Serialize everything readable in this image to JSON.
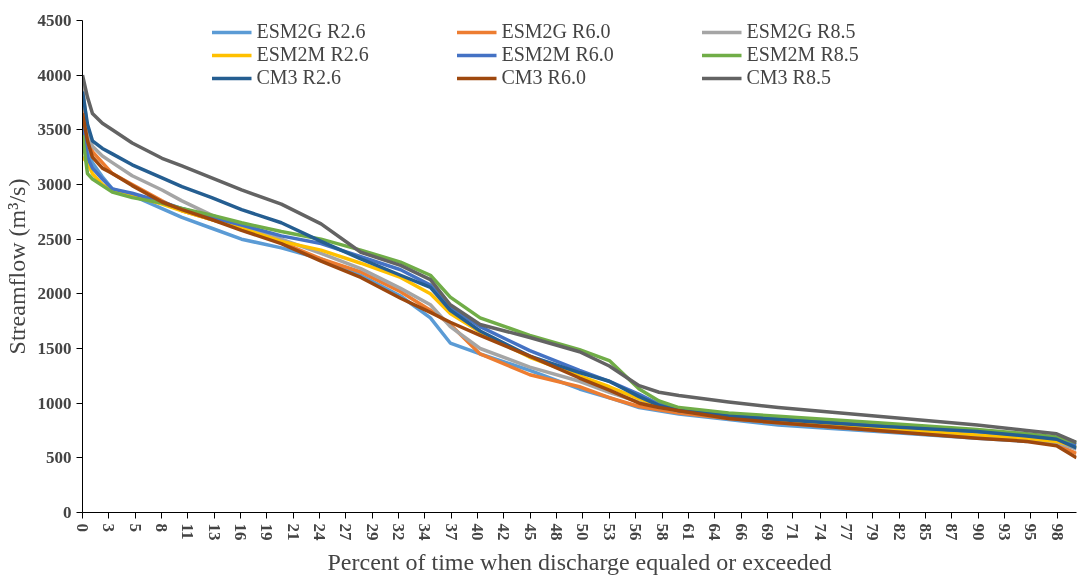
{
  "chart_data": {
    "type": "line",
    "xlabel": "Percent of time when discharge equaled or exceeded",
    "ylabel": "Streamflow (m³/s)",
    "x": [
      0,
      0.5,
      1,
      2,
      3,
      5,
      8,
      10,
      13,
      16,
      20,
      24,
      28,
      32,
      35,
      37,
      40,
      45,
      50,
      53,
      56,
      58,
      60,
      65,
      70,
      80,
      90,
      95,
      98,
      100
    ],
    "xlim": [
      0,
      100
    ],
    "xticks": [
      0,
      {
        "value": 2.65,
        "label": "3"
      },
      {
        "value": 5.3,
        "label": "5"
      },
      {
        "value": 7.95,
        "label": "8"
      },
      {
        "value": 10.6,
        "label": "11"
      },
      {
        "value": 13.25,
        "label": "13"
      },
      {
        "value": 15.9,
        "label": "16"
      },
      {
        "value": 18.55,
        "label": "19"
      },
      {
        "value": 21.2,
        "label": "21"
      },
      {
        "value": 23.85,
        "label": "24"
      },
      {
        "value": 26.5,
        "label": "27"
      },
      {
        "value": 29.15,
        "label": "29"
      },
      {
        "value": 31.8,
        "label": "32"
      },
      {
        "value": 34.45,
        "label": "34"
      },
      {
        "value": 37.1,
        "label": "37"
      },
      {
        "value": 39.75,
        "label": "40"
      },
      {
        "value": 42.4,
        "label": "42"
      },
      {
        "value": 45.05,
        "label": "45"
      },
      {
        "value": 47.7,
        "label": "48"
      },
      {
        "value": 50.35,
        "label": "50"
      },
      {
        "value": 53,
        "label": "53"
      },
      {
        "value": 55.65,
        "label": "56"
      },
      {
        "value": 58.3,
        "label": "58"
      },
      {
        "value": 60.95,
        "label": "61"
      },
      {
        "value": 63.6,
        "label": "64"
      },
      {
        "value": 66.25,
        "label": "66"
      },
      {
        "value": 68.9,
        "label": "69"
      },
      {
        "value": 71.4,
        "label": "71"
      },
      {
        "value": 74.2,
        "label": "74"
      },
      {
        "value": 76.85,
        "label": "77"
      },
      {
        "value": 79.5,
        "label": "79"
      },
      {
        "value": 82.15,
        "label": "82"
      },
      {
        "value": 84.8,
        "label": "85"
      },
      {
        "value": 87.45,
        "label": "87"
      },
      {
        "value": 90.1,
        "label": "90"
      },
      {
        "value": 92.75,
        "label": "93"
      },
      {
        "value": 95.4,
        "label": "95"
      },
      {
        "value": 98.05,
        "label": "98"
      }
    ],
    "ylim": [
      0,
      4500
    ],
    "yticks": [
      0,
      500,
      1000,
      1500,
      2000,
      2500,
      3000,
      3500,
      4000,
      4500
    ],
    "grid": false,
    "legend": "top",
    "marker": "none",
    "line_style": "solid",
    "series": [
      {
        "name": "ESM2G R2.6",
        "color": "#5b9bd5",
        "values": [
          3500,
          3300,
          3200,
          3070,
          2960,
          2900,
          2780,
          2700,
          2600,
          2500,
          2420,
          2320,
          2170,
          1980,
          1780,
          1550,
          1450,
          1300,
          1130,
          1050,
          960,
          930,
          900,
          850,
          800,
          740,
          680,
          650,
          null,
          null
        ]
      },
      {
        "name": "ESM2G R6.0",
        "color": "#ed7d31",
        "values": [
          3700,
          3450,
          3300,
          3200,
          3100,
          3000,
          2850,
          2760,
          2680,
          2600,
          2470,
          2320,
          2200,
          2020,
          1850,
          1720,
          1450,
          1260,
          1150,
          1050,
          970,
          940,
          910,
          860,
          820,
          750,
          690,
          660,
          620,
          540
        ]
      },
      {
        "name": "ESM2G R8.5",
        "color": "#a5a5a5",
        "values": [
          3900,
          3500,
          3350,
          3260,
          3200,
          3080,
          2950,
          2850,
          2720,
          2620,
          2500,
          2370,
          2230,
          2050,
          1900,
          1700,
          1500,
          1330,
          1200,
          1100,
          1010,
          960,
          930,
          870,
          830,
          760,
          700,
          670,
          640,
          580
        ]
      },
      {
        "name": "ESM2M R2.6",
        "color": "#ffc000",
        "values": [
          3250,
          3200,
          3100,
          3000,
          2950,
          2900,
          2820,
          2760,
          2680,
          2600,
          2480,
          2400,
          2280,
          2150,
          2000,
          1820,
          1650,
          1420,
          1250,
          1150,
          1040,
          980,
          950,
          890,
          850,
          780,
          710,
          680,
          650,
          600
        ]
      },
      {
        "name": "ESM2M R6.0",
        "color": "#4472c4",
        "values": [
          3550,
          3250,
          3150,
          3050,
          2960,
          2920,
          2840,
          2780,
          2700,
          2630,
          2530,
          2460,
          2340,
          2220,
          2080,
          1880,
          1700,
          1480,
          1300,
          1200,
          1080,
          990,
          950,
          890,
          860,
          800,
          740,
          710,
          680,
          620
        ]
      },
      {
        "name": "ESM2M R8.5",
        "color": "#70ad47",
        "values": [
          3450,
          3100,
          3050,
          2990,
          2930,
          2880,
          2830,
          2780,
          2720,
          2650,
          2570,
          2500,
          2400,
          2290,
          2170,
          1970,
          1780,
          1620,
          1490,
          1390,
          1130,
          1020,
          960,
          910,
          880,
          820,
          760,
          720,
          690,
          640
        ]
      },
      {
        "name": "CM3 R2.6",
        "color": "#255e91",
        "values": [
          3850,
          3550,
          3400,
          3330,
          3280,
          3180,
          3060,
          2980,
          2880,
          2770,
          2650,
          2480,
          2320,
          2170,
          2060,
          1850,
          1660,
          1430,
          1280,
          1200,
          1060,
          980,
          930,
          880,
          850,
          790,
          740,
          700,
          670,
          590
        ]
      },
      {
        "name": "CM3 R6.0",
        "color": "#9e480e",
        "values": [
          3650,
          3400,
          3250,
          3150,
          3100,
          2990,
          2840,
          2770,
          2680,
          2580,
          2460,
          2300,
          2150,
          1960,
          1830,
          1740,
          1620,
          1430,
          1230,
          1120,
          1000,
          960,
          930,
          860,
          820,
          750,
          680,
          650,
          610,
          500
        ]
      },
      {
        "name": "CM3 R8.5",
        "color": "#636363",
        "values": [
          4000,
          3800,
          3650,
          3560,
          3500,
          3380,
          3240,
          3170,
          3060,
          2950,
          2820,
          2640,
          2380,
          2260,
          2130,
          1900,
          1720,
          1600,
          1470,
          1340,
          1160,
          1100,
          1070,
          1010,
          960,
          880,
          800,
          750,
          720,
          640
        ]
      }
    ]
  }
}
